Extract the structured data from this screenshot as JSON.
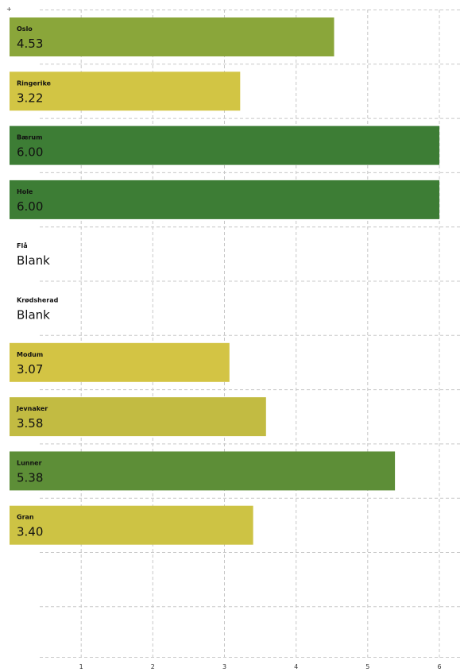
{
  "chart_data": {
    "type": "bar",
    "orientation": "horizontal",
    "categories": [
      "Oslo",
      "Ringerike",
      "Bærum",
      "Hole",
      "Flå",
      "Krødsherad",
      "Modum",
      "Jevnaker",
      "Lunner",
      "Gran"
    ],
    "values": [
      4.53,
      3.22,
      6.0,
      6.0,
      null,
      null,
      3.07,
      3.58,
      5.38,
      3.4
    ],
    "value_labels": [
      "4.53",
      "3.22",
      "6.00",
      "6.00",
      "Blank",
      "Blank",
      "3.07",
      "3.58",
      "5.38",
      "3.40"
    ],
    "colors": [
      "#8aa63a",
      "#d2c544",
      "#3d7d35",
      "#3d7d35",
      null,
      null,
      "#d3c444",
      "#c2bb42",
      "#5d8e37",
      "#cdc344"
    ],
    "x_ticks": [
      "1",
      "2",
      "3",
      "4",
      "5",
      "6"
    ],
    "xlim": [
      0.55,
      6.3
    ],
    "grid": true,
    "corner_mark": "+"
  }
}
